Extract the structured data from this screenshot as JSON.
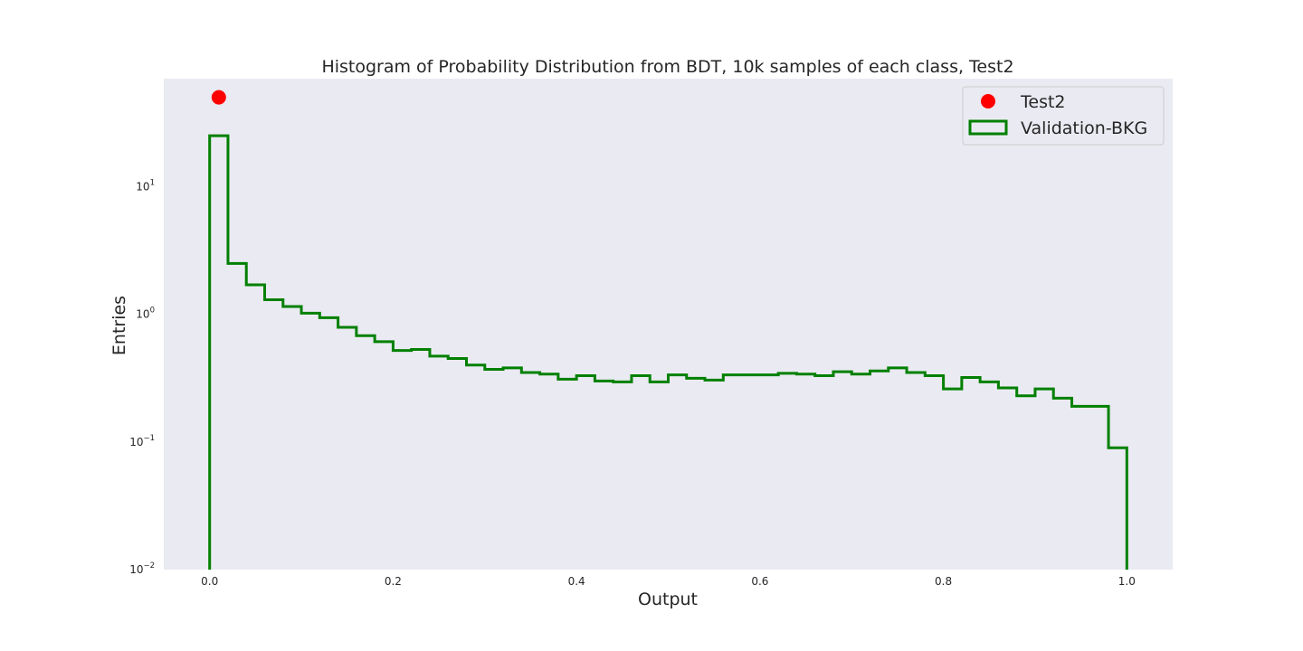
{
  "chart_data": {
    "type": "histogram",
    "title": "Histogram of Probability Distribution from BDT, 10k samples of each class, Test2",
    "xlabel": "Output",
    "ylabel": "Entries",
    "xlim": [
      -0.05,
      1.05
    ],
    "ylim": [
      0.01,
      70
    ],
    "yscale": "log",
    "grid": false,
    "background": "#eaeaf2",
    "legend_position": "top-right",
    "x_ticks": [
      "0.0",
      "0.2",
      "0.4",
      "0.6",
      "0.8",
      "1.0"
    ],
    "x_tick_values": [
      0.0,
      0.2,
      0.4,
      0.6,
      0.8,
      1.0
    ],
    "y_ticks": [
      {
        "value": 0.01,
        "base": "10",
        "exp": "−2"
      },
      {
        "value": 0.1,
        "base": "10",
        "exp": "−1"
      },
      {
        "value": 1,
        "base": "10",
        "exp": "0"
      },
      {
        "value": 10,
        "base": "10",
        "exp": "1"
      }
    ],
    "series": [
      {
        "name": "Test2",
        "kind": "point",
        "color": "#ff0000",
        "x": 0.01,
        "y": 50
      },
      {
        "name": "Validation-BKG",
        "kind": "step",
        "color": "#008000",
        "bin_edges": [
          0.0,
          0.02,
          0.04,
          0.06,
          0.08,
          0.1,
          0.12,
          0.14,
          0.16,
          0.18,
          0.2,
          0.22,
          0.24,
          0.26,
          0.28,
          0.3,
          0.32,
          0.34,
          0.36,
          0.38,
          0.4,
          0.42,
          0.44,
          0.46,
          0.48,
          0.5,
          0.52,
          0.54,
          0.56,
          0.58,
          0.6,
          0.62,
          0.64,
          0.66,
          0.68,
          0.7,
          0.72,
          0.74,
          0.76,
          0.78,
          0.8,
          0.82,
          0.84,
          0.86,
          0.88,
          0.9,
          0.92,
          0.94,
          0.96,
          0.98,
          1.0
        ],
        "values": [
          25,
          2.5,
          1.7,
          1.3,
          1.15,
          1.02,
          0.94,
          0.79,
          0.68,
          0.61,
          0.52,
          0.53,
          0.47,
          0.45,
          0.4,
          0.37,
          0.38,
          0.35,
          0.34,
          0.31,
          0.33,
          0.3,
          0.295,
          0.33,
          0.295,
          0.335,
          0.315,
          0.305,
          0.335,
          0.335,
          0.335,
          0.345,
          0.34,
          0.33,
          0.355,
          0.34,
          0.36,
          0.38,
          0.35,
          0.33,
          0.26,
          0.32,
          0.295,
          0.265,
          0.23,
          0.26,
          0.22,
          0.19,
          0.19,
          0.09
        ]
      }
    ]
  }
}
